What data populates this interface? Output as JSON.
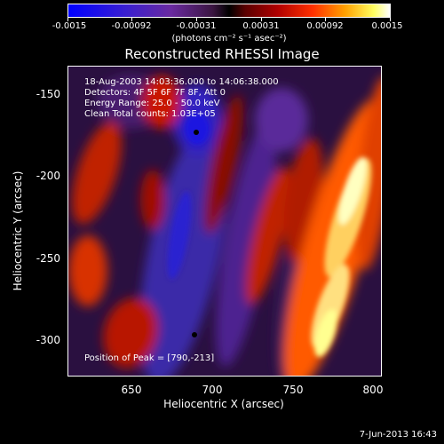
{
  "colorbar": {
    "ticks": [
      "-0.0015",
      "-0.00092",
      "-0.00031",
      "0.00031",
      "0.00092",
      "0.0015"
    ],
    "unit_text": "(photons cm⁻² s⁻¹ asec⁻²)"
  },
  "title": "Reconstructed RHESSI Image",
  "info": {
    "line1": "18-Aug-2003 14:03:36.000 to 14:06:38.000",
    "line2": "Detectors: 4F 5F 6F 7F 8F, Att 0",
    "line3": "Energy Range: 25.0 - 50.0 keV",
    "line4": "Clean    Total counts: 1.03E+05",
    "peak": "Position of Peak = [790,-213]"
  },
  "axes": {
    "xlabel": "Heliocentric X (arcsec)",
    "ylabel": "Heliocentric Y (arcsec)",
    "xticks": [
      "650",
      "700",
      "750",
      "800"
    ],
    "yticks": [
      "-150",
      "-200",
      "-250",
      "-300"
    ]
  },
  "timestamp": "7-Jun-2013 16:43",
  "colors": {
    "frame": "#ffffff",
    "background": "#000000"
  }
}
